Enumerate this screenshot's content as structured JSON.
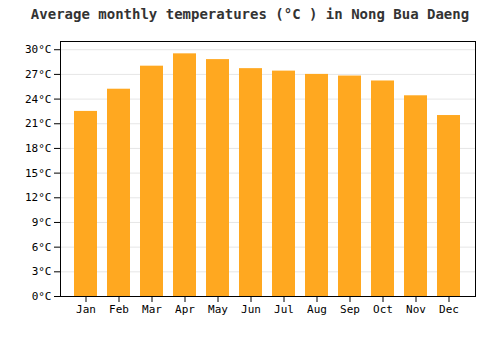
{
  "chart_data": {
    "type": "bar",
    "title": "Average monthly temperatures (°C ) in Nong Bua Daeng",
    "categories": [
      "Jan",
      "Feb",
      "Mar",
      "Apr",
      "May",
      "Jun",
      "Jul",
      "Aug",
      "Sep",
      "Oct",
      "Nov",
      "Dec"
    ],
    "values": [
      22.5,
      25.2,
      28.0,
      29.5,
      28.8,
      27.7,
      27.4,
      27.0,
      26.8,
      26.2,
      24.4,
      22.0
    ],
    "color": "#FFA820",
    "ylim": [
      0,
      31
    ],
    "yticks": [
      {
        "value": 0,
        "label": "0°C"
      },
      {
        "value": 3,
        "label": "3°C"
      },
      {
        "value": 6,
        "label": "6°C"
      },
      {
        "value": 9,
        "label": "9°C"
      },
      {
        "value": 12,
        "label": "12°C"
      },
      {
        "value": 15,
        "label": "15°C"
      },
      {
        "value": 18,
        "label": "18°C"
      },
      {
        "value": 21,
        "label": "21°C"
      },
      {
        "value": 24,
        "label": "24°C"
      },
      {
        "value": 27,
        "label": "27°C"
      },
      {
        "value": 30,
        "label": "30°C"
      }
    ],
    "grid": true
  }
}
